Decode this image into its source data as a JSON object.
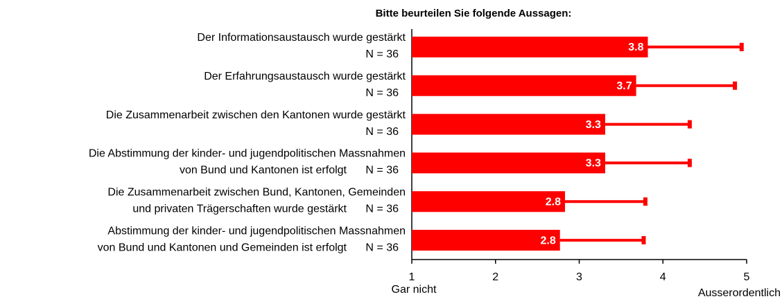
{
  "chart_data": {
    "type": "hbar_error",
    "title": "Bitte beurteilen Sie folgende Aussagen:",
    "categories": [
      [
        "Der Informationsaustausch wurde gestärkt"
      ],
      [
        "Der Erfahrungsaustausch wurde gestärkt"
      ],
      [
        "Die Zusammenarbeit zwischen den Kantonen wurde gestärkt"
      ],
      [
        "Die Abstimmung der kinder- und jugendpolitischen Massnahmen",
        "von Bund und Kantonen ist erfolgt"
      ],
      [
        "Die Zusammenarbeit zwischen Bund, Kantonen, Gemeinden",
        "und privaten Trägerschaften wurde gestärkt"
      ],
      [
        "Abstimmung der kinder- und jugendpolitischen Massnahmen",
        "von Bund und Kantonen und Gemeinden ist erfolgt"
      ]
    ],
    "n_labels": [
      "N = 36",
      "N = 36",
      "N = 36",
      "N = 36",
      "N = 36",
      "N = 36"
    ],
    "values": [
      3.82,
      3.68,
      3.31,
      3.31,
      2.83,
      2.77
    ],
    "value_labels": [
      "3.8",
      "3.7",
      "3.3",
      "3.3",
      "2.8",
      "2.8"
    ],
    "errors": [
      1.12,
      1.18,
      1.01,
      1.01,
      0.96,
      1.0
    ],
    "color": "#ff0000",
    "xlim": [
      1,
      5
    ],
    "xticks": [
      1,
      2,
      3,
      4,
      5
    ],
    "x_end_labels": [
      "Gar nicht",
      "Ausserordentlich"
    ]
  }
}
